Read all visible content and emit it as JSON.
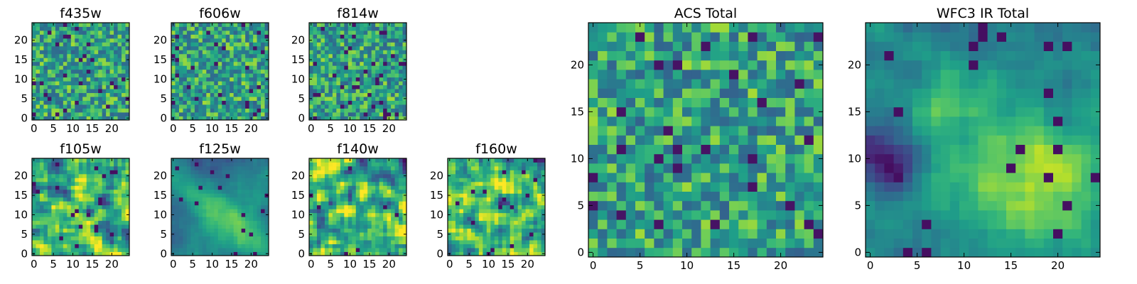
{
  "chart_data": [
    {
      "type": "heatmap",
      "title": "f435w",
      "xlim": [
        0,
        25
      ],
      "ylim": [
        0,
        25
      ],
      "xticks": [
        "0",
        "5",
        "10",
        "15",
        "20"
      ],
      "yticks": [
        "0",
        "5",
        "10",
        "15",
        "20"
      ],
      "colormap": "viridis",
      "texture": "speckle",
      "values_note": "25x25 pixel grid, values not labeled"
    },
    {
      "type": "heatmap",
      "title": "f606w",
      "xlim": [
        0,
        25
      ],
      "ylim": [
        0,
        25
      ],
      "xticks": [
        "0",
        "5",
        "10",
        "15",
        "20"
      ],
      "yticks": [
        "0",
        "5",
        "10",
        "15",
        "20"
      ],
      "colormap": "viridis",
      "texture": "speckle"
    },
    {
      "type": "heatmap",
      "title": "f814w",
      "xlim": [
        0,
        25
      ],
      "ylim": [
        0,
        25
      ],
      "xticks": [
        "0",
        "5",
        "10",
        "15",
        "20"
      ],
      "yticks": [
        "0",
        "5",
        "10",
        "15",
        "20"
      ],
      "colormap": "viridis",
      "texture": "speckle"
    },
    {
      "type": "heatmap",
      "title": "f105w",
      "xlim": [
        0,
        25
      ],
      "ylim": [
        0,
        25
      ],
      "xticks": [
        "0",
        "5",
        "10",
        "15",
        "20"
      ],
      "yticks": [
        "0",
        "5",
        "10",
        "15",
        "20"
      ],
      "colormap": "viridis",
      "texture": "smooth"
    },
    {
      "type": "heatmap",
      "title": "f125w",
      "xlim": [
        0,
        25
      ],
      "ylim": [
        0,
        25
      ],
      "xticks": [
        "0",
        "5",
        "10",
        "15",
        "20"
      ],
      "yticks": [
        "0",
        "5",
        "10",
        "15",
        "20"
      ],
      "colormap": "viridis",
      "texture": "diagonal"
    },
    {
      "type": "heatmap",
      "title": "f140w",
      "xlim": [
        0,
        25
      ],
      "ylim": [
        0,
        25
      ],
      "xticks": [
        "0",
        "5",
        "10",
        "15",
        "20"
      ],
      "yticks": [
        "0",
        "5",
        "10",
        "15",
        "20"
      ],
      "colormap": "viridis",
      "texture": "smooth"
    },
    {
      "type": "heatmap",
      "title": "f160w",
      "xlim": [
        0,
        25
      ],
      "ylim": [
        0,
        25
      ],
      "xticks": [
        "0",
        "5",
        "10",
        "15",
        "20"
      ],
      "yticks": [
        "0",
        "5",
        "10",
        "15",
        "20"
      ],
      "colormap": "viridis",
      "texture": "smooth"
    },
    {
      "type": "heatmap",
      "title": "ACS Total",
      "xlim": [
        0,
        25
      ],
      "ylim": [
        0,
        25
      ],
      "xticks": [
        "0",
        "5",
        "10",
        "15",
        "20"
      ],
      "yticks": [
        "0",
        "5",
        "10",
        "15",
        "20"
      ],
      "colormap": "viridis",
      "texture": "speckle"
    },
    {
      "type": "heatmap",
      "title": "WFC3 IR Total",
      "xlim": [
        0,
        25
      ],
      "ylim": [
        0,
        25
      ],
      "xticks": [
        "0",
        "5",
        "10",
        "15",
        "20"
      ],
      "yticks": [
        "0",
        "5",
        "10",
        "15",
        "20"
      ],
      "colormap": "viridis",
      "texture": "blob"
    }
  ]
}
